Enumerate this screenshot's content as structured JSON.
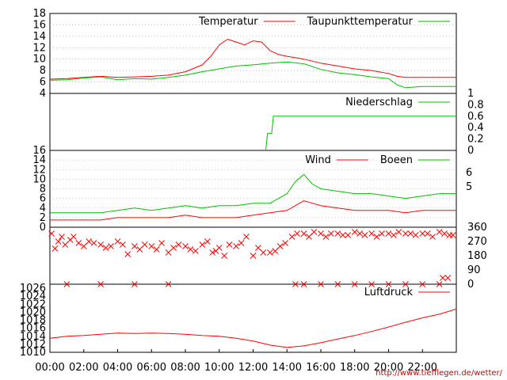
{
  "chart_data": [
    {
      "type": "line",
      "title": "",
      "xlabel": "",
      "ylabel": "",
      "ylim": [
        4,
        18
      ],
      "yticks": [
        4,
        6,
        8,
        10,
        12,
        14,
        16,
        18
      ],
      "grid": true,
      "legend_position": "top-right",
      "series": [
        {
          "name": "Temperatur",
          "color": "#ff0000",
          "x": [
            0,
            1,
            2,
            3,
            4,
            5,
            6,
            7,
            8,
            9,
            9.5,
            10,
            10.5,
            11,
            11.5,
            12,
            12.5,
            13,
            13.5,
            14,
            15,
            16,
            17,
            18,
            19,
            20,
            20.5,
            21,
            22,
            23,
            24
          ],
          "y": [
            6.5,
            6.6,
            6.8,
            7.0,
            6.8,
            6.9,
            7.0,
            7.2,
            7.8,
            9.0,
            10.5,
            12.5,
            13.5,
            13.0,
            12.5,
            13.2,
            13.0,
            11.5,
            10.8,
            10.5,
            10.0,
            9.3,
            8.8,
            8.3,
            8.0,
            7.5,
            7.0,
            6.8,
            6.8,
            6.8,
            6.8
          ]
        },
        {
          "name": "Taupunkttemperatur",
          "color": "#00c000",
          "x": [
            0,
            1,
            2,
            3,
            4,
            5,
            6,
            7,
            8,
            9,
            10,
            11,
            12,
            13,
            14,
            15,
            16,
            17,
            18,
            19,
            20,
            20.5,
            21,
            22,
            23,
            24
          ],
          "y": [
            6.3,
            6.4,
            6.7,
            6.9,
            6.4,
            6.6,
            6.5,
            6.8,
            7.2,
            7.8,
            8.3,
            8.8,
            9.0,
            9.3,
            9.5,
            9.2,
            8.2,
            7.6,
            7.3,
            6.9,
            6.6,
            5.5,
            5.0,
            5.2,
            5.2,
            5.2
          ]
        }
      ]
    },
    {
      "type": "line",
      "title": "",
      "xlabel": "",
      "ylabel": "",
      "ylim": [
        0,
        1
      ],
      "yticks": [
        0,
        0.2,
        0.4,
        0.6,
        0.8,
        1
      ],
      "legend_position": "top-right",
      "series": [
        {
          "name": "Niederschlag",
          "color": "#00c000",
          "x": [
            12.75,
            12.85,
            13.1,
            13.2,
            24
          ],
          "y": [
            0,
            0.3,
            0.3,
            0.6,
            0.6
          ]
        }
      ]
    },
    {
      "type": "line",
      "title": "",
      "xlabel": "",
      "ylabel": "",
      "ylim": [
        0,
        16
      ],
      "yticks": [
        0,
        2,
        4,
        6,
        8,
        10,
        12,
        14,
        16
      ],
      "yticks_right": [
        "5",
        "6"
      ],
      "grid": true,
      "legend_position": "top-right",
      "series": [
        {
          "name": "Wind",
          "color": "#ff0000",
          "x": [
            0,
            1,
            2,
            3,
            4,
            5,
            6,
            7,
            8,
            9,
            10,
            11,
            12,
            13,
            14,
            14.5,
            15,
            15.5,
            16,
            17,
            18,
            19,
            20,
            21,
            22,
            23,
            24
          ],
          "y": [
            1.5,
            1.5,
            1.5,
            1.5,
            2,
            2,
            2,
            2,
            2.5,
            2,
            2,
            2,
            2.5,
            3,
            3.5,
            4.5,
            5.5,
            5,
            4.5,
            4,
            3.5,
            3.5,
            3.5,
            3,
            3.5,
            3.5,
            3.5
          ]
        },
        {
          "name": "Boeen",
          "color": "#00c000",
          "x": [
            0,
            1,
            2,
            3,
            4,
            5,
            6,
            7,
            8,
            9,
            10,
            11,
            12,
            13,
            14,
            14.5,
            15,
            15.5,
            16,
            17,
            18,
            19,
            20,
            21,
            22,
            23,
            24
          ],
          "y": [
            3,
            3,
            3,
            3,
            3.5,
            4,
            3.5,
            4,
            4.5,
            4,
            4.5,
            4.5,
            5,
            5,
            7,
            9.5,
            11,
            9,
            8,
            7.5,
            7,
            7,
            6.5,
            6,
            6.5,
            7,
            7
          ]
        }
      ]
    },
    {
      "type": "scatter",
      "title": "",
      "xlabel": "",
      "ylabel": "",
      "ylim": [
        0,
        360
      ],
      "yticks": [
        0,
        90,
        180,
        270,
        360
      ],
      "marker": "x",
      "series": [
        {
          "name": "",
          "color": "#ff0000",
          "x": [
            0.1,
            0.3,
            0.5,
            0.7,
            0.9,
            1.2,
            1.4,
            1.7,
            2.0,
            2.3,
            2.6,
            3.0,
            3.3,
            3.6,
            4.0,
            4.3,
            4.6,
            5.0,
            5.3,
            5.6,
            6.0,
            6.3,
            6.6,
            7.0,
            7.3,
            7.6,
            8.0,
            8.3,
            8.6,
            9.0,
            9.3,
            9.6,
            9.8,
            10.0,
            10.3,
            10.6,
            11.0,
            11.3,
            11.6,
            12.0,
            12.3,
            12.6,
            13.0,
            13.3,
            13.6,
            13.9,
            14.3,
            14.6,
            15.0,
            15.3,
            15.6,
            16.0,
            16.3,
            16.6,
            17.0,
            17.3,
            17.6,
            18.0,
            18.3,
            18.6,
            19.0,
            19.3,
            19.6,
            20.0,
            20.3,
            20.6,
            21.0,
            21.3,
            21.6,
            22.0,
            22.3,
            22.6,
            23.0,
            23.3,
            23.6,
            23.8,
            1.0,
            3.0,
            5.0,
            7.0,
            14.5,
            15.0,
            16.0,
            17.0,
            18.0,
            19.0,
            20.0,
            21.0,
            22.0,
            23.0,
            23.2,
            23.5
          ],
          "y": [
            320,
            225,
            270,
            300,
            250,
            280,
            300,
            260,
            240,
            270,
            260,
            250,
            230,
            240,
            270,
            250,
            190,
            240,
            220,
            250,
            240,
            220,
            260,
            200,
            230,
            250,
            240,
            220,
            210,
            250,
            270,
            200,
            210,
            230,
            180,
            250,
            240,
            260,
            300,
            180,
            230,
            200,
            200,
            210,
            240,
            260,
            300,
            320,
            320,
            300,
            330,
            320,
            300,
            320,
            320,
            310,
            310,
            330,
            320,
            310,
            320,
            300,
            320,
            320,
            310,
            330,
            320,
            320,
            310,
            320,
            320,
            300,
            330,
            320,
            310,
            310,
            0,
            0,
            0,
            0,
            0,
            0,
            0,
            0,
            0,
            0,
            0,
            0,
            0,
            0,
            40,
            40
          ]
        }
      ]
    },
    {
      "type": "line",
      "title": "",
      "xlabel": "",
      "ylabel": "",
      "ylim": [
        1010,
        1027
      ],
      "yticks": [
        1010,
        1012,
        1014,
        1016,
        1018,
        1020,
        1022,
        1024,
        1026
      ],
      "legend_position": "top-right",
      "series": [
        {
          "name": "Luftdruck",
          "color": "#ff0000",
          "x": [
            0,
            1,
            2,
            3,
            4,
            5,
            6,
            7,
            8,
            9,
            10,
            11,
            12,
            13,
            14,
            15,
            16,
            17,
            18,
            19,
            20,
            21,
            22,
            23,
            24
          ],
          "y": [
            1013.5,
            1014.0,
            1014.2,
            1014.5,
            1014.8,
            1014.7,
            1014.8,
            1014.7,
            1014.5,
            1014.2,
            1014.0,
            1013.5,
            1012.8,
            1011.8,
            1011.2,
            1011.6,
            1012.4,
            1013.3,
            1014.2,
            1015.2,
            1016.3,
            1017.5,
            1018.6,
            1019.5,
            1020.8
          ]
        }
      ]
    }
  ],
  "x_axis": {
    "range": [
      0,
      24
    ],
    "tick_labels": [
      "00:00",
      "02:00",
      "04:00",
      "06:00",
      "08:00",
      "10:00",
      "12:00",
      "14:00",
      "16:00",
      "18:00",
      "20:00",
      "22:00"
    ]
  },
  "footer_url": "http://www.tiefflegen.de/wetter/"
}
